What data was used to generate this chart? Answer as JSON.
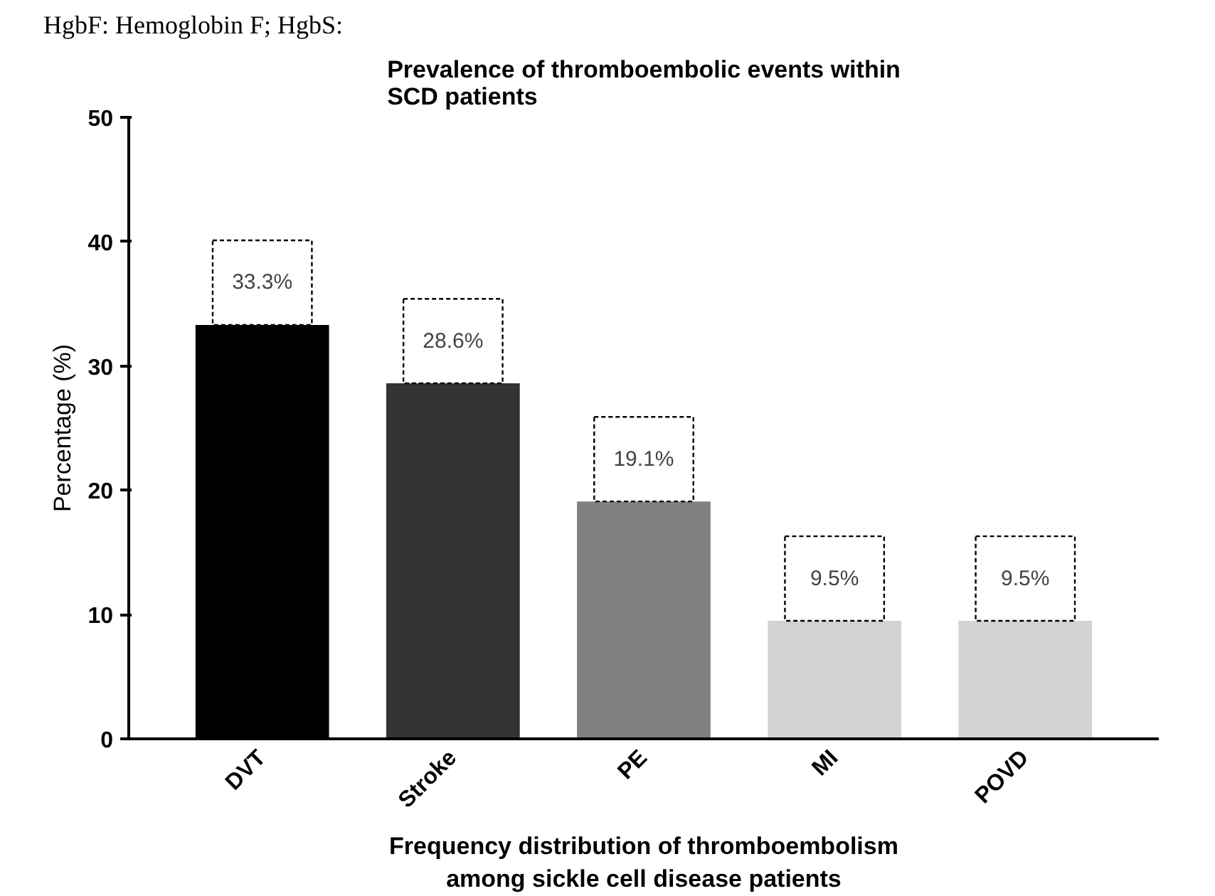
{
  "chart_data": {
    "type": "bar",
    "title": "Prevalence of thromboembolic events within\nSCD patients",
    "xlabel": "Frequency distribution of thromboembolism\namong sickle cell disease patients",
    "ylabel": "Percentage (%)",
    "annotations": [
      "HgbF: Hemoglobin F; HgbS:"
    ],
    "categories": [
      "DVT",
      "Stroke",
      "PE",
      "MI",
      "POVD"
    ],
    "values": [
      33.3,
      28.6,
      19.1,
      9.5,
      9.5
    ],
    "value_labels": [
      "33.3%",
      "28.6%",
      "19.1%",
      "9.5%",
      "9.5%"
    ],
    "colors": [
      "#000000",
      "#333333",
      "#808080",
      "#d3d3d3",
      "#d3d3d3"
    ],
    "ylim": [
      0,
      50
    ],
    "yticks": [
      0,
      10,
      20,
      30,
      40,
      50
    ],
    "grid": false
  }
}
